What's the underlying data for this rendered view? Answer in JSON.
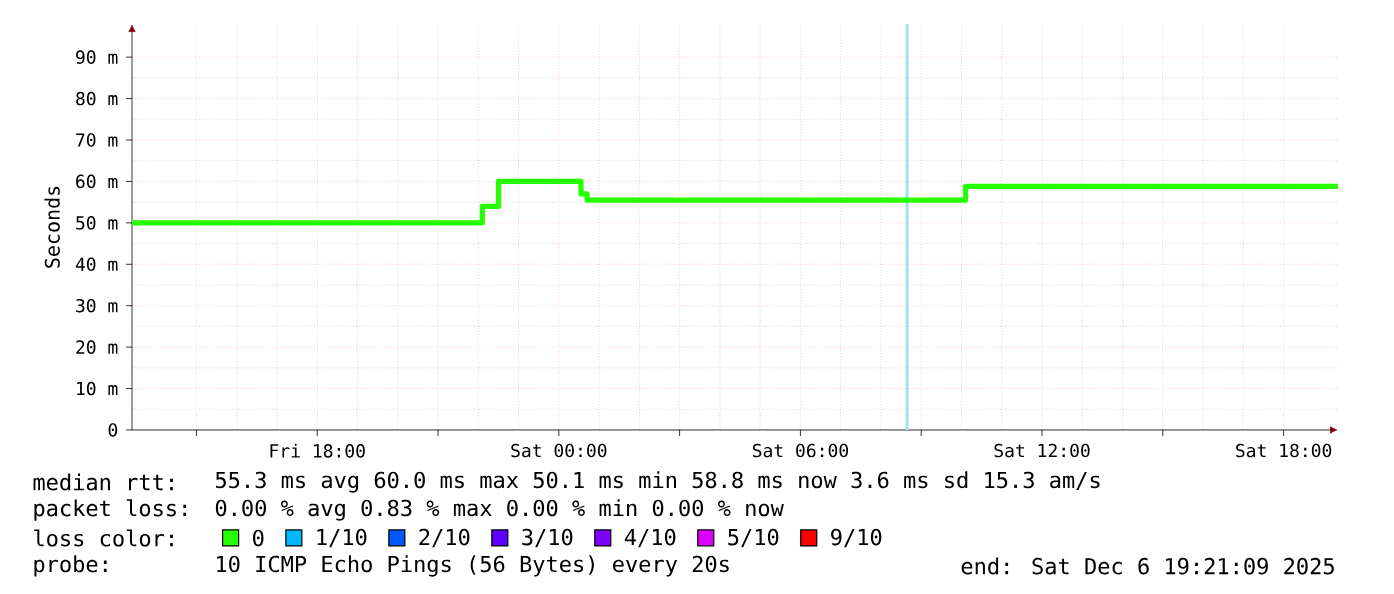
{
  "chart_data": {
    "type": "step",
    "ylabel": "Seconds",
    "x": [
      "2025-12-05T13:24",
      "2025-12-05T22:06",
      "2025-12-05T22:30",
      "2025-12-06T00:33",
      "2025-12-06T00:42",
      "2025-12-06T10:06",
      "2025-12-06T19:21"
    ],
    "series": [
      {
        "name": "0",
        "color": "#26ff00",
        "values": [
          50,
          54,
          60,
          57,
          55.5,
          58.8,
          58.8
        ]
      },
      {
        "name": "1/10",
        "color": "#00b8ff",
        "values": [
          null,
          null,
          null,
          null,
          null,
          null,
          null
        ]
      },
      {
        "name": "2/10",
        "color": "#0059ff",
        "values": [
          null,
          null,
          null,
          null,
          null,
          null,
          null
        ]
      },
      {
        "name": "3/10",
        "color": "#5e00ff",
        "values": [
          null,
          null,
          null,
          null,
          null,
          null,
          null
        ]
      },
      {
        "name": "4/10",
        "color": "#7e00ff",
        "values": [
          null,
          null,
          null,
          null,
          null,
          null,
          null
        ]
      },
      {
        "name": "5/10",
        "color": "#dd00ff",
        "values": [
          null,
          null,
          null,
          null,
          null,
          null,
          null
        ]
      },
      {
        "name": "9/10",
        "color": "#ff0000",
        "values": [
          null,
          null,
          null,
          null,
          null,
          null,
          null
        ]
      }
    ],
    "legend": "bottom",
    "legend_title": "loss color:",
    "xlim": [
      "2025-12-05T13:24",
      "2025-12-06T19:21"
    ],
    "xticks": [
      {
        "value": "2025-12-05T15:00",
        "label": null
      },
      {
        "value": "2025-12-05T18:00",
        "label": "Fri 18:00"
      },
      {
        "value": "2025-12-05T21:00",
        "label": null
      },
      {
        "value": "2025-12-06T00:00",
        "label": "Sat 00:00"
      },
      {
        "value": "2025-12-06T03:00",
        "label": null
      },
      {
        "value": "2025-12-06T06:00",
        "label": "Sat 06:00"
      },
      {
        "value": "2025-12-06T09:00",
        "label": null
      },
      {
        "value": "2025-12-06T12:00",
        "label": "Sat 12:00"
      },
      {
        "value": "2025-12-06T15:00",
        "label": null
      },
      {
        "value": "2025-12-06T18:00",
        "label": "Sat 18:00"
      }
    ],
    "ylim": [
      0,
      98
    ],
    "yticks": [
      0,
      {
        "value": 10,
        "label": "10 m"
      },
      {
        "value": 20,
        "label": "20 m"
      },
      {
        "value": 30,
        "label": "30 m"
      },
      {
        "value": 40,
        "label": "40 m"
      },
      {
        "value": 50,
        "label": "50 m"
      },
      {
        "value": 60,
        "label": "60 m"
      },
      {
        "value": 70,
        "label": "70 m"
      },
      {
        "value": 80,
        "label": "80 m"
      },
      {
        "value": 90,
        "label": "90 m"
      }
    ],
    "grid": true,
    "ref_lines": [
      {
        "axis": "x",
        "value": "2025-12-06T08:39",
        "color": "#a0e0f8"
      }
    ],
    "annotations": [
      "median rtt:",
      "55.3 ms avg  60.0 ms max  50.1 ms min  58.8 ms now  3.6 ms sd  15.3   am/s",
      "packet loss:",
      "0.00 % avg  0.83 % max  0.00 % min  0.00 % now",
      "probe:",
      "10 ICMP Echo Pings (56 Bytes) every 20s",
      "end: Sat Dec  6 19:21:09 2025"
    ]
  }
}
